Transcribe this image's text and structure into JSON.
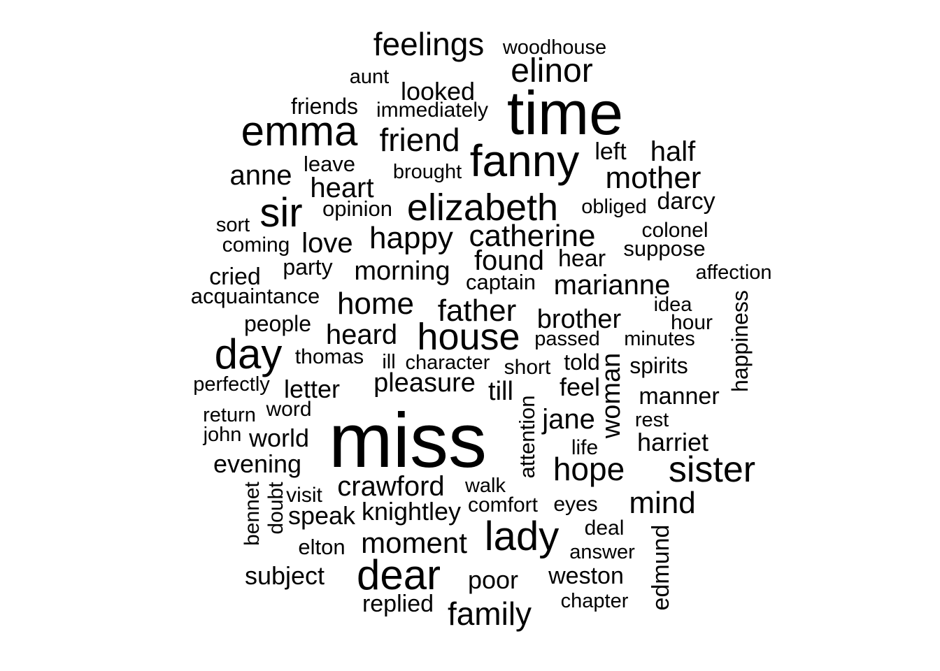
{
  "chart_data": {
    "type": "wordcloud",
    "title": "",
    "color": "#000000",
    "words": [
      {
        "text": "miss",
        "weight": 110
      },
      {
        "text": "time",
        "weight": 88
      },
      {
        "text": "fanny",
        "weight": 64
      },
      {
        "text": "emma",
        "weight": 60
      },
      {
        "text": "day",
        "weight": 60
      },
      {
        "text": "dear",
        "weight": 60
      },
      {
        "text": "lady",
        "weight": 58
      },
      {
        "text": "sir",
        "weight": 58
      },
      {
        "text": "elizabeth",
        "weight": 54
      },
      {
        "text": "house",
        "weight": 54
      },
      {
        "text": "sister",
        "weight": 52
      },
      {
        "text": "elinor",
        "weight": 48
      },
      {
        "text": "friend",
        "weight": 46
      },
      {
        "text": "feelings",
        "weight": 46
      },
      {
        "text": "family",
        "weight": 46
      },
      {
        "text": "hope",
        "weight": 46
      },
      {
        "text": "catherine",
        "weight": 44
      },
      {
        "text": "happy",
        "weight": 44
      },
      {
        "text": "father",
        "weight": 44
      },
      {
        "text": "home",
        "weight": 44
      },
      {
        "text": "mother",
        "weight": 44
      },
      {
        "text": "mind",
        "weight": 44
      },
      {
        "text": "moment",
        "weight": 42
      },
      {
        "text": "crawford",
        "weight": 40
      },
      {
        "text": "marianne",
        "weight": 40
      },
      {
        "text": "found",
        "weight": 40
      },
      {
        "text": "heart",
        "weight": 40
      },
      {
        "text": "half",
        "weight": 40
      },
      {
        "text": "anne",
        "weight": 40
      },
      {
        "text": "love",
        "weight": 40
      },
      {
        "text": "jane",
        "weight": 40
      },
      {
        "text": "heard",
        "weight": 40
      },
      {
        "text": "morning",
        "weight": 38
      },
      {
        "text": "pleasure",
        "weight": 38
      },
      {
        "text": "till",
        "weight": 38
      },
      {
        "text": "brother",
        "weight": 38
      },
      {
        "text": "woman",
        "weight": 38
      },
      {
        "text": "looked",
        "weight": 36
      },
      {
        "text": "letter",
        "weight": 36
      },
      {
        "text": "world",
        "weight": 36
      },
      {
        "text": "evening",
        "weight": 36
      },
      {
        "text": "speak",
        "weight": 36
      },
      {
        "text": "knightley",
        "weight": 36
      },
      {
        "text": "subject",
        "weight": 36
      },
      {
        "text": "harriet",
        "weight": 36
      },
      {
        "text": "poor",
        "weight": 36
      },
      {
        "text": "feel",
        "weight": 36
      },
      {
        "text": "weston",
        "weight": 34
      },
      {
        "text": "hear",
        "weight": 34
      },
      {
        "text": "cried",
        "weight": 34
      },
      {
        "text": "manner",
        "weight": 34
      },
      {
        "text": "left",
        "weight": 34
      },
      {
        "text": "darcy",
        "weight": 34
      },
      {
        "text": "edmund",
        "weight": 34
      },
      {
        "text": "replied",
        "weight": 34
      },
      {
        "text": "people",
        "weight": 32
      },
      {
        "text": "happiness",
        "weight": 32
      },
      {
        "text": "friends",
        "weight": 32
      },
      {
        "text": "spirits",
        "weight": 32
      },
      {
        "text": "party",
        "weight": 32
      },
      {
        "text": "told",
        "weight": 32
      },
      {
        "text": "opinion",
        "weight": 31
      },
      {
        "text": "suppose",
        "weight": 31
      },
      {
        "text": "acquaintance",
        "weight": 31
      },
      {
        "text": "captain",
        "weight": 31
      },
      {
        "text": "leave",
        "weight": 31
      },
      {
        "text": "elton",
        "weight": 31
      },
      {
        "text": "attention",
        "weight": 31
      },
      {
        "text": "thomas",
        "weight": 30
      },
      {
        "text": "immediately",
        "weight": 30
      },
      {
        "text": "coming",
        "weight": 30
      },
      {
        "text": "colonel",
        "weight": 30
      },
      {
        "text": "short",
        "weight": 30
      },
      {
        "text": "comfort",
        "weight": 30
      },
      {
        "text": "eyes",
        "weight": 30
      },
      {
        "text": "deal",
        "weight": 30
      },
      {
        "text": "life",
        "weight": 30
      },
      {
        "text": "hour",
        "weight": 30
      },
      {
        "text": "word",
        "weight": 30
      },
      {
        "text": "visit",
        "weight": 30
      },
      {
        "text": "bennet",
        "weight": 30
      },
      {
        "text": "doubt",
        "weight": 30
      },
      {
        "text": "brought",
        "weight": 29
      },
      {
        "text": "obliged",
        "weight": 29
      },
      {
        "text": "affection",
        "weight": 29
      },
      {
        "text": "idea",
        "weight": 29
      },
      {
        "text": "passed",
        "weight": 29
      },
      {
        "text": "minutes",
        "weight": 29
      },
      {
        "text": "character",
        "weight": 29
      },
      {
        "text": "perfectly",
        "weight": 29
      },
      {
        "text": "return",
        "weight": 29
      },
      {
        "text": "john",
        "weight": 29
      },
      {
        "text": "rest",
        "weight": 29
      },
      {
        "text": "walk",
        "weight": 29
      },
      {
        "text": "answer",
        "weight": 29
      },
      {
        "text": "chapter",
        "weight": 29
      },
      {
        "text": "aunt",
        "weight": 29
      },
      {
        "text": "sort",
        "weight": 29
      },
      {
        "text": "ill",
        "weight": 29
      },
      {
        "text": "woodhouse",
        "weight": 29
      }
    ]
  }
}
